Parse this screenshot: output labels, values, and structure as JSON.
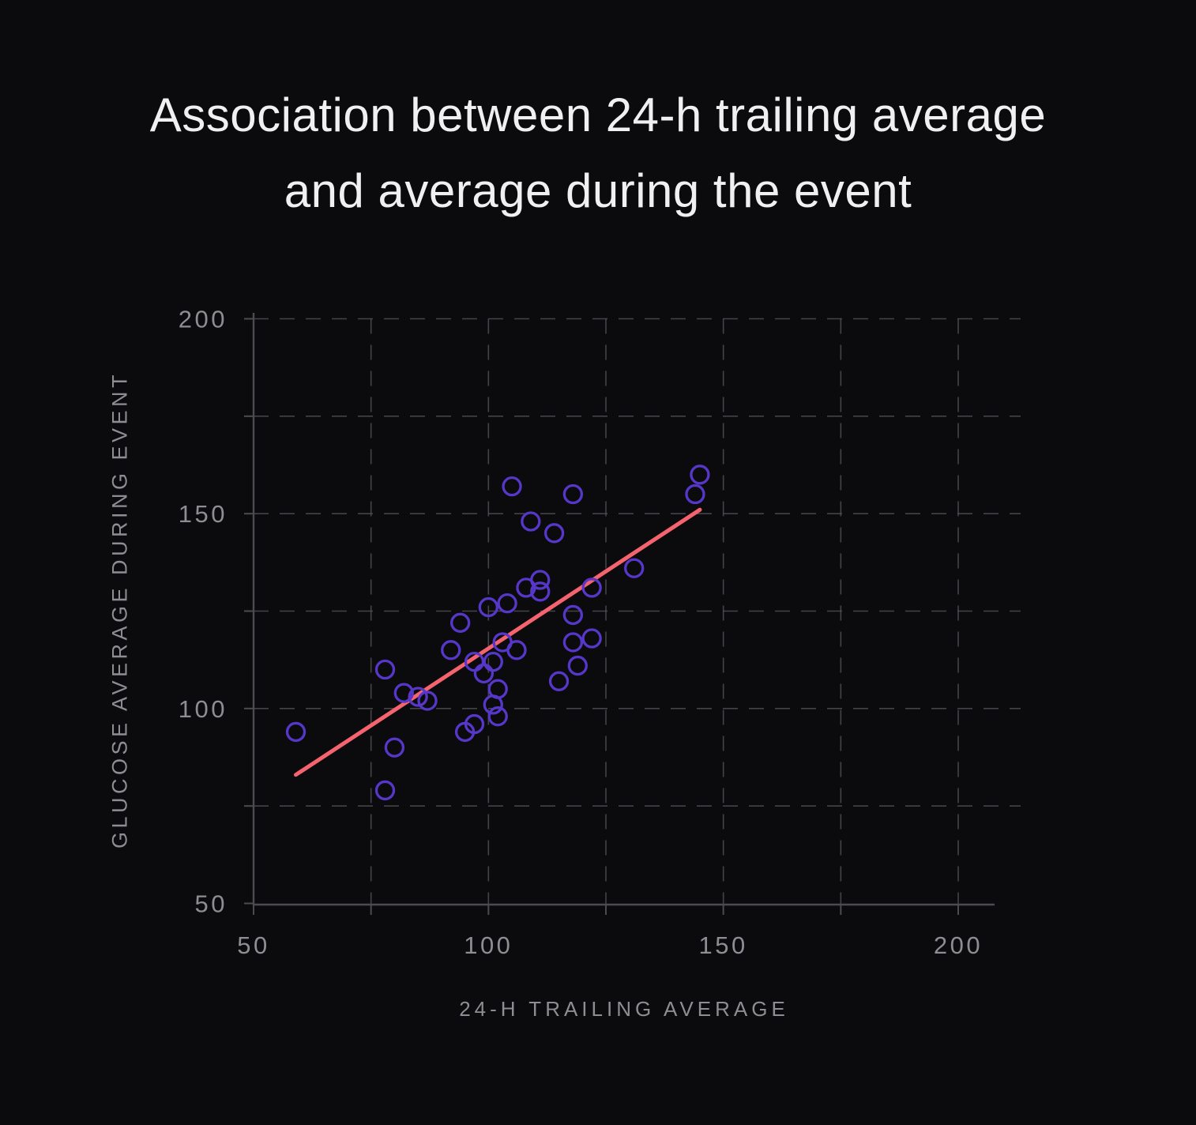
{
  "title": "Association between 24-h trailing average and average during the event",
  "chart_data": {
    "type": "scatter",
    "title": "Association between 24-h trailing average and average during the event",
    "xlabel": "24-H TRAILING AVERAGE",
    "ylabel": "GLUCOSE AVERAGE DURING EVENT",
    "xlim": [
      50,
      207
    ],
    "ylim": [
      50,
      203
    ],
    "x_major_ticks": [
      50,
      100,
      150,
      200
    ],
    "y_major_ticks": [
      50,
      100,
      150,
      200
    ],
    "minor_tick_step": 25,
    "grid": "dashed, every 25 units",
    "legend": "none",
    "points": [
      [
        59,
        94
      ],
      [
        78,
        79
      ],
      [
        80,
        90
      ],
      [
        78,
        110
      ],
      [
        82,
        104
      ],
      [
        85,
        103
      ],
      [
        87,
        102
      ],
      [
        92,
        115
      ],
      [
        94,
        122
      ],
      [
        95,
        94
      ],
      [
        97,
        96
      ],
      [
        97,
        112
      ],
      [
        101,
        112
      ],
      [
        99,
        109
      ],
      [
        100,
        126
      ],
      [
        104,
        127
      ],
      [
        103,
        117
      ],
      [
        106,
        115
      ],
      [
        102,
        105
      ],
      [
        101,
        101
      ],
      [
        102,
        98
      ],
      [
        105,
        157
      ],
      [
        109,
        148
      ],
      [
        114,
        145
      ],
      [
        108,
        131
      ],
      [
        111,
        133
      ],
      [
        111,
        130
      ],
      [
        118,
        155
      ],
      [
        118,
        124
      ],
      [
        118,
        117
      ],
      [
        122,
        118
      ],
      [
        119,
        111
      ],
      [
        115,
        107
      ],
      [
        122,
        131
      ],
      [
        131,
        136
      ],
      [
        144,
        155
      ],
      [
        145,
        160
      ]
    ],
    "trend_line": {
      "x1": 59,
      "y1": 83,
      "x2": 145,
      "y2": 151
    },
    "colors": {
      "background": "#0b0b0d",
      "point_stroke": "#5637c9",
      "trend": "#f4636e",
      "grid": "#535257",
      "axis": "#4c4b50",
      "tick_label": "#8e8d91",
      "axis_title": "#8e8d91",
      "title": "#f0eff2"
    }
  }
}
